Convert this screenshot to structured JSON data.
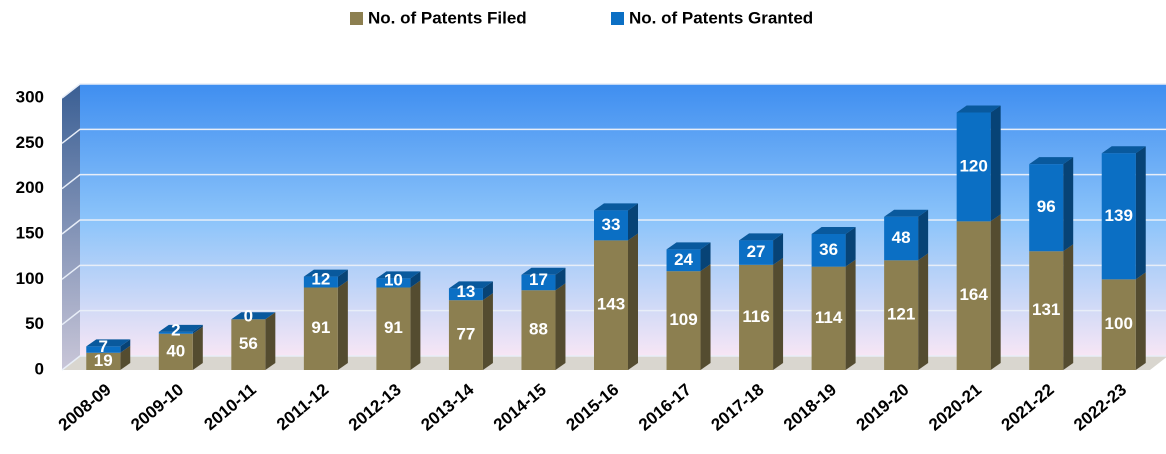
{
  "chart_data": {
    "type": "stacked-bar",
    "categories": [
      "2008-09",
      "2009-10",
      "2010-11",
      "2011-12",
      "2012-13",
      "2013-14",
      "2014-15",
      "2015-16",
      "2016-17",
      "2017-18",
      "2018-19",
      "2019-20",
      "2020-21",
      "2021-22",
      "2022-23"
    ],
    "series": [
      {
        "name": "No. of Patents Filed",
        "color": "#8c7f50",
        "values": [
          19,
          40,
          56,
          91,
          91,
          77,
          88,
          143,
          109,
          116,
          114,
          121,
          164,
          131,
          100
        ]
      },
      {
        "name": "No. of Patents Granted",
        "color": "#0b6fc4",
        "values": [
          7,
          2,
          0,
          12,
          10,
          13,
          17,
          33,
          24,
          27,
          36,
          48,
          120,
          96,
          139
        ]
      }
    ],
    "ylim": [
      0,
      300
    ],
    "yticks": [
      0,
      50,
      100,
      150,
      200,
      250,
      300
    ],
    "grid": true,
    "legend": "top"
  }
}
